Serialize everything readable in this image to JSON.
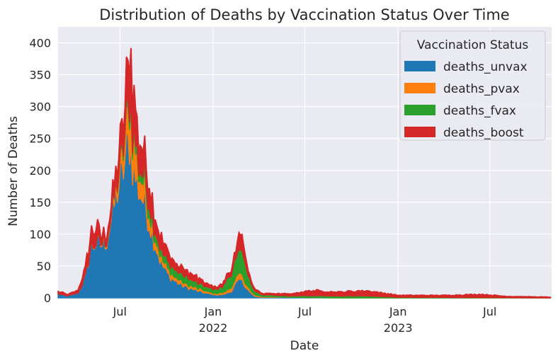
{
  "chart_data": {
    "type": "area",
    "stacked": true,
    "title": "Distribution of Deaths by Vaccination Status Over Time",
    "xlabel": "Date",
    "ylabel": "Number of Deaths",
    "xlim": [
      "2021-03-01",
      "2023-10-31"
    ],
    "ylim": [
      0,
      425
    ],
    "yticks": [
      0,
      50,
      100,
      150,
      200,
      250,
      300,
      350,
      400
    ],
    "xticks": [
      {
        "date": "2021-07-01",
        "label": "Jul",
        "sublabel": ""
      },
      {
        "date": "2022-01-01",
        "label": "Jan",
        "sublabel": "2022"
      },
      {
        "date": "2022-07-01",
        "label": "Jul",
        "sublabel": ""
      },
      {
        "date": "2023-01-01",
        "label": "Jan",
        "sublabel": "2023"
      },
      {
        "date": "2023-07-01",
        "label": "Jul",
        "sublabel": ""
      }
    ],
    "grid": true,
    "background": "#eaeaf2",
    "legend": {
      "title": "Vaccination Status",
      "placement": "top-right"
    },
    "series": [
      {
        "name": "deaths_unvax",
        "color": "#1f77b4",
        "points": [
          [
            "2021-03-01",
            6
          ],
          [
            "2021-03-20",
            3
          ],
          [
            "2021-04-10",
            8
          ],
          [
            "2021-04-25",
            35
          ],
          [
            "2021-05-05",
            80
          ],
          [
            "2021-05-15",
            85
          ],
          [
            "2021-05-25",
            82
          ],
          [
            "2021-06-05",
            90
          ],
          [
            "2021-06-15",
            125
          ],
          [
            "2021-06-25",
            165
          ],
          [
            "2021-07-05",
            190
          ],
          [
            "2021-07-15",
            230
          ],
          [
            "2021-07-20",
            248
          ],
          [
            "2021-07-25",
            215
          ],
          [
            "2021-08-05",
            175
          ],
          [
            "2021-08-20",
            145
          ],
          [
            "2021-09-05",
            95
          ],
          [
            "2021-09-20",
            55
          ],
          [
            "2021-10-05",
            35
          ],
          [
            "2021-10-20",
            25
          ],
          [
            "2021-11-05",
            18
          ],
          [
            "2021-11-20",
            14
          ],
          [
            "2021-12-05",
            10
          ],
          [
            "2021-12-20",
            7
          ],
          [
            "2022-01-05",
            5
          ],
          [
            "2022-01-20",
            5
          ],
          [
            "2022-02-05",
            10
          ],
          [
            "2022-02-15",
            22
          ],
          [
            "2022-02-25",
            28
          ],
          [
            "2022-03-05",
            20
          ],
          [
            "2022-03-15",
            8
          ],
          [
            "2022-03-25",
            2
          ],
          [
            "2022-04-10",
            1
          ],
          [
            "2022-06-01",
            1
          ],
          [
            "2022-09-01",
            0
          ],
          [
            "2023-01-01",
            0
          ],
          [
            "2023-10-31",
            0
          ]
        ]
      },
      {
        "name": "deaths_pvax",
        "color": "#ff7f0e",
        "points": [
          [
            "2021-03-01",
            0
          ],
          [
            "2021-04-10",
            0
          ],
          [
            "2021-05-05",
            1
          ],
          [
            "2021-05-25",
            2
          ],
          [
            "2021-06-15",
            5
          ],
          [
            "2021-06-25",
            15
          ],
          [
            "2021-07-05",
            30
          ],
          [
            "2021-07-15",
            45
          ],
          [
            "2021-07-20",
            55
          ],
          [
            "2021-07-25",
            50
          ],
          [
            "2021-08-05",
            35
          ],
          [
            "2021-08-20",
            25
          ],
          [
            "2021-09-05",
            15
          ],
          [
            "2021-09-20",
            10
          ],
          [
            "2021-10-05",
            8
          ],
          [
            "2021-10-20",
            6
          ],
          [
            "2021-11-05",
            5
          ],
          [
            "2021-11-20",
            4
          ],
          [
            "2021-12-05",
            4
          ],
          [
            "2021-12-20",
            3
          ],
          [
            "2022-01-05",
            2
          ],
          [
            "2022-01-20",
            3
          ],
          [
            "2022-02-05",
            5
          ],
          [
            "2022-02-15",
            8
          ],
          [
            "2022-02-25",
            10
          ],
          [
            "2022-03-05",
            7
          ],
          [
            "2022-03-15",
            4
          ],
          [
            "2022-03-25",
            2
          ],
          [
            "2022-04-10",
            1
          ],
          [
            "2022-06-01",
            0
          ],
          [
            "2022-09-01",
            0
          ],
          [
            "2023-01-01",
            0
          ],
          [
            "2023-10-31",
            0
          ]
        ]
      },
      {
        "name": "deaths_fvax",
        "color": "#2ca02c",
        "points": [
          [
            "2021-03-01",
            0
          ],
          [
            "2021-04-10",
            0
          ],
          [
            "2021-05-05",
            0
          ],
          [
            "2021-05-25",
            0
          ],
          [
            "2021-06-15",
            1
          ],
          [
            "2021-06-25",
            2
          ],
          [
            "2021-07-05",
            5
          ],
          [
            "2021-07-15",
            8
          ],
          [
            "2021-07-20",
            10
          ],
          [
            "2021-07-25",
            12
          ],
          [
            "2021-08-05",
            12
          ],
          [
            "2021-08-20",
            14
          ],
          [
            "2021-09-05",
            12
          ],
          [
            "2021-09-20",
            11
          ],
          [
            "2021-10-05",
            12
          ],
          [
            "2021-10-20",
            12
          ],
          [
            "2021-11-05",
            11
          ],
          [
            "2021-11-20",
            10
          ],
          [
            "2021-12-05",
            9
          ],
          [
            "2021-12-20",
            7
          ],
          [
            "2022-01-05",
            6
          ],
          [
            "2022-01-20",
            10
          ],
          [
            "2022-02-05",
            22
          ],
          [
            "2022-02-15",
            32
          ],
          [
            "2022-02-25",
            35
          ],
          [
            "2022-03-05",
            28
          ],
          [
            "2022-03-15",
            15
          ],
          [
            "2022-03-25",
            6
          ],
          [
            "2022-04-10",
            3
          ],
          [
            "2022-06-01",
            2
          ],
          [
            "2022-07-15",
            3
          ],
          [
            "2022-09-01",
            3
          ],
          [
            "2022-11-01",
            3
          ],
          [
            "2023-01-01",
            1
          ],
          [
            "2023-10-31",
            0
          ]
        ]
      },
      {
        "name": "deaths_boost",
        "color": "#d62728",
        "points": [
          [
            "2021-03-01",
            4
          ],
          [
            "2021-03-20",
            2
          ],
          [
            "2021-04-10",
            4
          ],
          [
            "2021-04-25",
            15
          ],
          [
            "2021-05-05",
            20
          ],
          [
            "2021-05-15",
            25
          ],
          [
            "2021-05-25",
            12
          ],
          [
            "2021-06-05",
            10
          ],
          [
            "2021-06-15",
            15
          ],
          [
            "2021-06-25",
            25
          ],
          [
            "2021-07-05",
            35
          ],
          [
            "2021-07-15",
            55
          ],
          [
            "2021-07-20",
            92
          ],
          [
            "2021-07-25",
            58
          ],
          [
            "2021-08-05",
            45
          ],
          [
            "2021-08-20",
            33
          ],
          [
            "2021-09-05",
            25
          ],
          [
            "2021-09-20",
            20
          ],
          [
            "2021-10-05",
            15
          ],
          [
            "2021-10-20",
            12
          ],
          [
            "2021-11-05",
            10
          ],
          [
            "2021-11-20",
            9
          ],
          [
            "2021-12-05",
            8
          ],
          [
            "2021-12-20",
            5
          ],
          [
            "2022-01-05",
            3
          ],
          [
            "2022-01-20",
            4
          ],
          [
            "2022-02-05",
            8
          ],
          [
            "2022-02-15",
            12
          ],
          [
            "2022-02-25",
            30
          ],
          [
            "2022-03-05",
            12
          ],
          [
            "2022-03-15",
            6
          ],
          [
            "2022-03-25",
            3
          ],
          [
            "2022-04-10",
            2
          ],
          [
            "2022-06-01",
            3
          ],
          [
            "2022-07-15",
            8
          ],
          [
            "2022-09-01",
            6
          ],
          [
            "2022-11-01",
            8
          ],
          [
            "2023-01-01",
            3
          ],
          [
            "2023-04-01",
            3
          ],
          [
            "2023-06-15",
            5
          ],
          [
            "2023-08-01",
            2
          ],
          [
            "2023-10-31",
            1
          ]
        ]
      }
    ]
  }
}
